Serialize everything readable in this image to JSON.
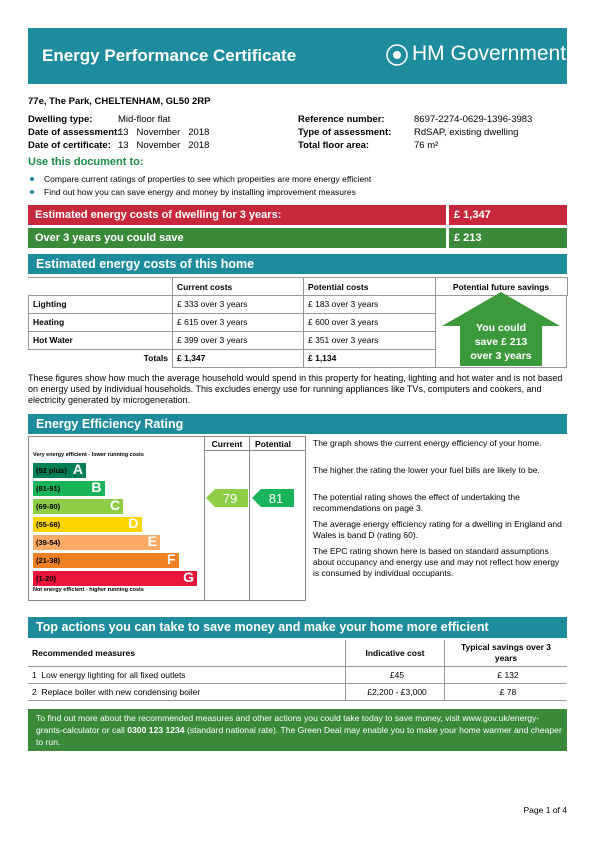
{
  "header": {
    "title": "Energy Performance Certificate",
    "logo": "HM Government"
  },
  "address": "77e, The Park, CHELTENHAM, GL50 2RP",
  "details": {
    "left": [
      [
        "Dwelling type:",
        "Mid-floor flat"
      ],
      [
        "Date of assessment:",
        "13   November   2018"
      ],
      [
        "Date of certificate:",
        "13   November   2018"
      ]
    ],
    "right": [
      [
        "Reference number:",
        "8697-2274-0629-1396-3983"
      ],
      [
        "Type of assessment:",
        "RdSAP, existing dwelling"
      ],
      [
        "Total floor area:",
        "76 m²"
      ]
    ]
  },
  "use": {
    "heading": "Use this document to:",
    "bullets": [
      "Compare current ratings of properties to see which properties are more energy efficient",
      "Find out how you can save energy and money by installing improvement measures"
    ]
  },
  "summary": [
    [
      "Estimated energy costs of dwelling for 3 years:",
      "£ 1,347"
    ],
    [
      "Over 3 years you could save",
      "£ 213"
    ]
  ],
  "costs": {
    "heading": "Estimated energy costs of this home",
    "columns": [
      "Current costs",
      "Potential costs",
      "Potential future savings"
    ],
    "rows": [
      [
        "Lighting",
        "£ 333 over 3 years",
        "£ 183 over 3 years"
      ],
      [
        "Heating",
        "£ 615 over 3 years",
        "£ 600 over 3 years"
      ],
      [
        "Hot Water",
        "£ 399 over 3 years",
        "£ 351 over 3 years"
      ],
      [
        "Totals",
        "£ 1,347",
        "£ 1,134"
      ]
    ],
    "savings": [
      "You could",
      "save £ 213",
      "over 3 years"
    ],
    "note": "These figures show how much the average household would spend in this property for heating, lighting and hot water and is not based on energy used by individual households. This excludes energy use for running appliances like TVs, computers and cookers, and electricity generated by microgeneration."
  },
  "efficiency": {
    "heading": "Energy Efficiency Rating",
    "columns": [
      "Current",
      "Potential"
    ],
    "top": "Very energy efficient - lower running costs",
    "bottom": "Not energy efficient - higher running costs",
    "bands": [
      [
        "(92 plus)",
        "A"
      ],
      [
        "(81-91)",
        "B"
      ],
      [
        "(69-80)",
        "C"
      ],
      [
        "(55-68)",
        "D"
      ],
      [
        "(39-54)",
        "E"
      ],
      [
        "(21-38)",
        "F"
      ],
      [
        "(1-20)",
        "G"
      ]
    ],
    "current": "79",
    "potential": "81",
    "paragraphs": [
      "The graph shows the current energy efficiency of your home.",
      "The higher the rating the lower your fuel bills are likely to be.",
      "The potential rating shows the effect of undertaking the recommendations on page 3.",
      "The average energy efficiency rating for a dwelling in England and Wales is band D (rating 60).",
      "The EPC rating shown here is based on standard assumptions about occupancy and energy use and may not reflect how energy is consumed by individual occupants."
    ]
  },
  "actions": {
    "heading": "Top actions you can take to save money and make your home more efficient",
    "columns": [
      "Recommended measures",
      "Indicative cost",
      "Typical savings over 3 years"
    ],
    "rows": [
      [
        "1  Low energy lighting for all fixed outlets",
        "£45",
        "£ 132"
      ],
      [
        "2  Replace boiler with new condensing boiler",
        "£2,200 - £3,000",
        "£ 78"
      ]
    ]
  },
  "footer": {
    "before": "To find out more about the recommended measures and other actions you could take today to save money, visit www.gov.uk/energy-grants-calculator or call ",
    "phone": "0300 123 1234",
    "after": " (standard national rate). The Green Deal may enable you to make your home warmer and cheaper to run."
  },
  "page": "Page 1 of 4"
}
